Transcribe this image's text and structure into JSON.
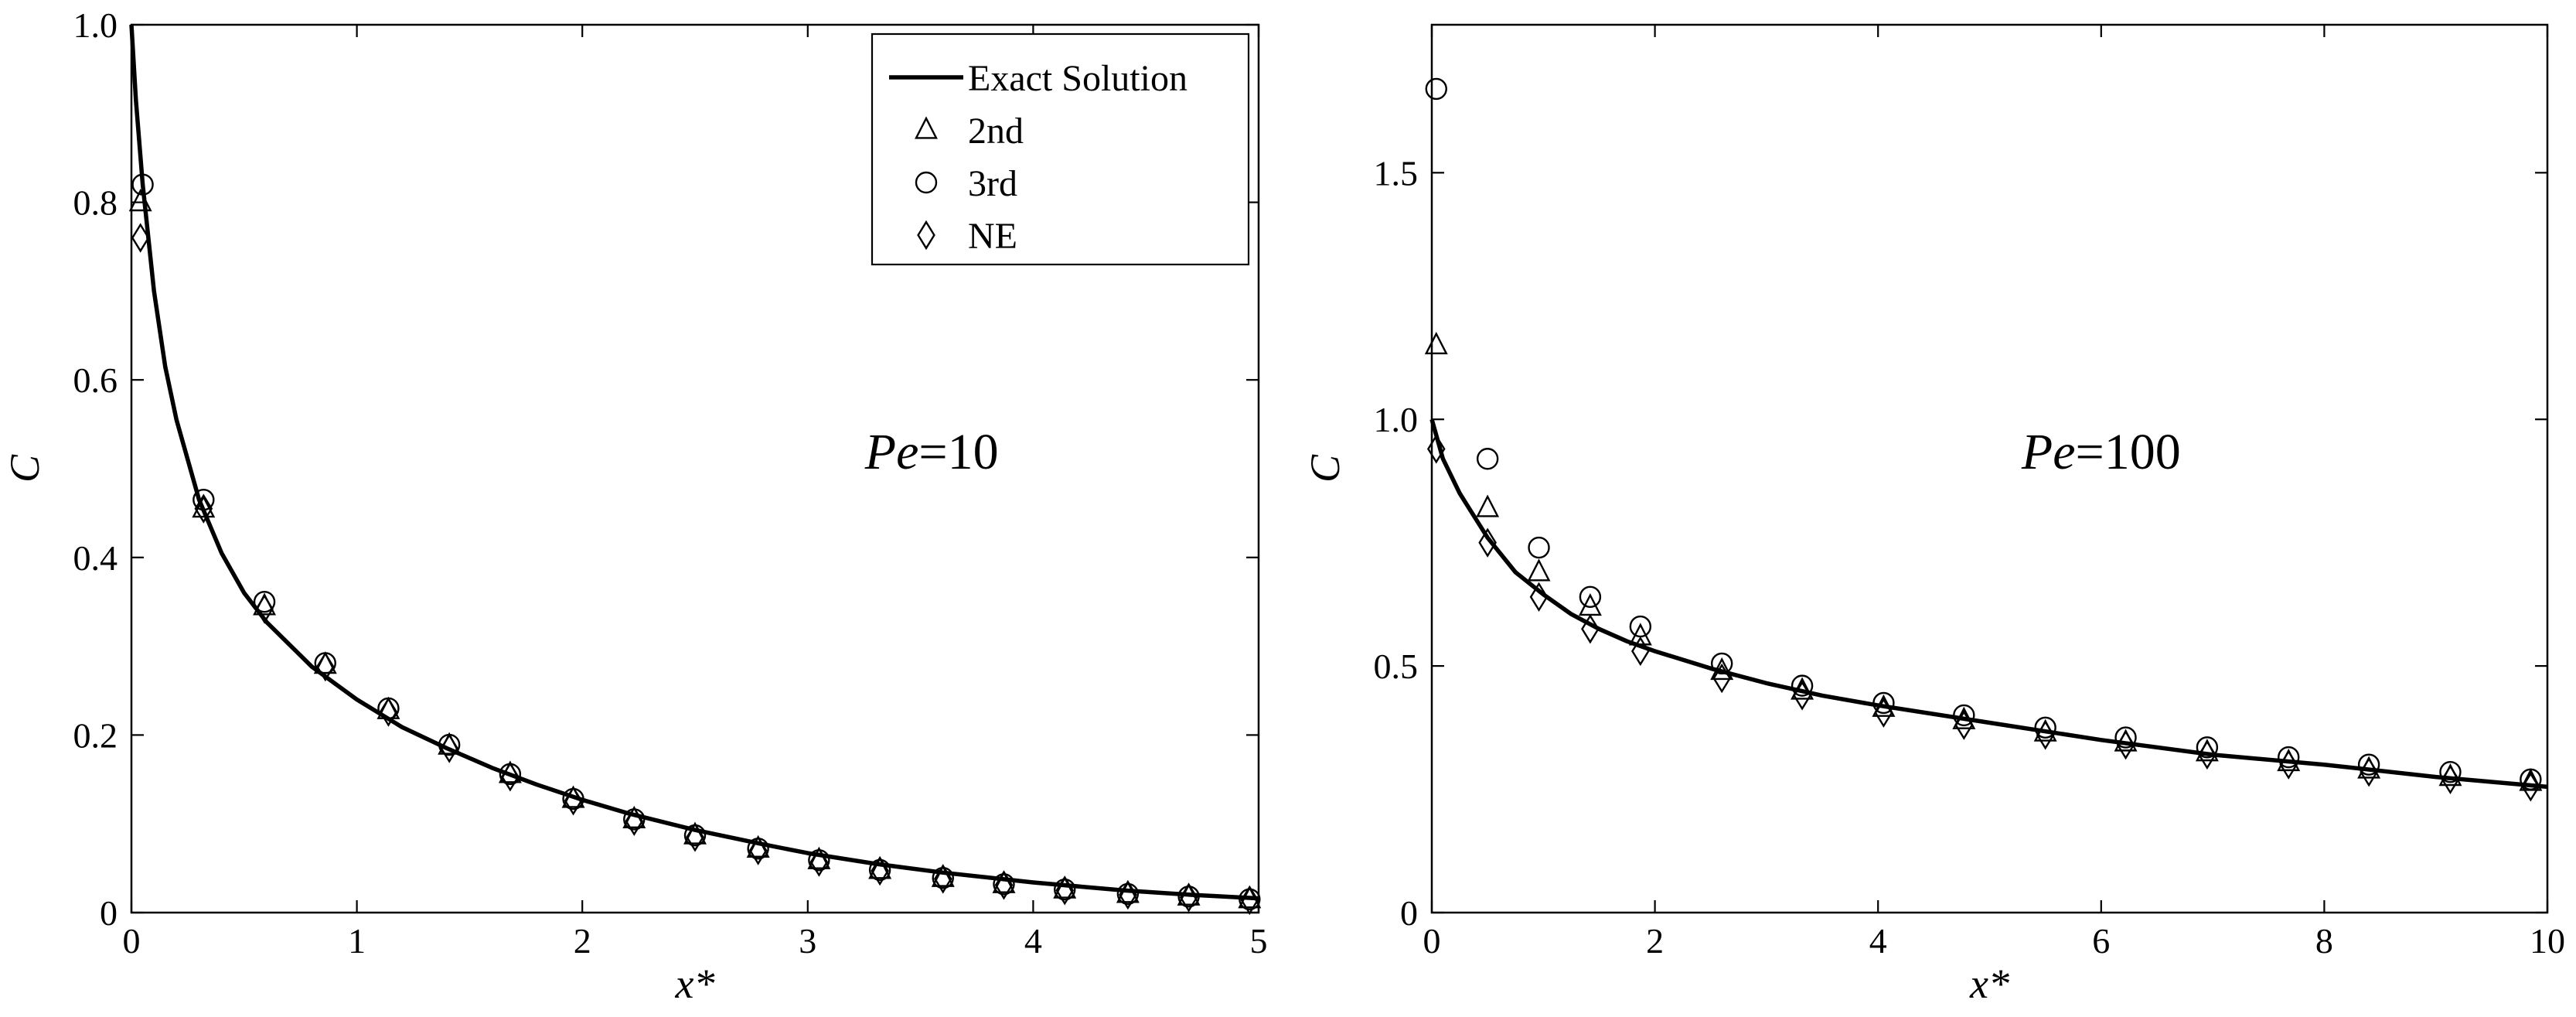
{
  "chart_data": [
    {
      "type": "line",
      "title": "",
      "xlabel": "x*",
      "ylabel": "C",
      "xlim": [
        0,
        5
      ],
      "ylim": [
        0,
        1
      ],
      "xticks": [
        0,
        1,
        2,
        3,
        4,
        5
      ],
      "xtick_labels": [
        "0",
        "1",
        "2",
        "3",
        "4",
        "5"
      ],
      "yticks": [
        0,
        0.2,
        0.4,
        0.6,
        0.8,
        1.0
      ],
      "ytick_labels": [
        "0",
        "0.2",
        "0.4",
        "0.6",
        "0.8",
        "1.0"
      ],
      "annotation": {
        "italic": "Pe",
        "rest": "=10",
        "x": 3.55,
        "y": 0.5
      },
      "grid": false,
      "legend": {
        "location": "top-right",
        "entries": [
          {
            "label": "Exact Solution",
            "marker": "line"
          },
          {
            "label": "2nd",
            "marker": "triangle"
          },
          {
            "label": "3rd",
            "marker": "circle"
          },
          {
            "label": "NE",
            "marker": "diamond"
          }
        ]
      },
      "exact_solution": {
        "name": "Exact Solution",
        "x": [
          0,
          0.02,
          0.05,
          0.1,
          0.15,
          0.2,
          0.3,
          0.4,
          0.5,
          0.6,
          0.8,
          1.0,
          1.2,
          1.4,
          1.6,
          1.8,
          2.0,
          2.2,
          2.5,
          2.8,
          3.0,
          3.3,
          3.6,
          4.0,
          4.4,
          4.7,
          5.0
        ],
        "y": [
          1.0,
          0.915,
          0.82,
          0.7,
          0.615,
          0.555,
          0.465,
          0.405,
          0.36,
          0.327,
          0.277,
          0.24,
          0.209,
          0.185,
          0.163,
          0.144,
          0.127,
          0.112,
          0.093,
          0.077,
          0.067,
          0.055,
          0.045,
          0.034,
          0.025,
          0.02,
          0.016
        ]
      },
      "series": [
        {
          "name": "2nd",
          "marker": "triangle",
          "x": [
            0.04,
            0.32,
            0.59,
            0.86,
            1.14,
            1.41,
            1.68,
            1.96,
            2.23,
            2.5,
            2.78,
            3.05,
            3.32,
            3.6,
            3.87,
            4.14,
            4.42,
            4.69,
            4.96
          ],
          "y": [
            0.8,
            0.455,
            0.345,
            0.279,
            0.228,
            0.188,
            0.156,
            0.128,
            0.105,
            0.087,
            0.072,
            0.059,
            0.048,
            0.039,
            0.032,
            0.026,
            0.021,
            0.018,
            0.015
          ]
        },
        {
          "name": "3rd",
          "marker": "circle",
          "x": [
            0.05,
            0.32,
            0.59,
            0.86,
            1.14,
            1.41,
            1.68,
            1.96,
            2.23,
            2.5,
            2.78,
            3.05,
            3.32,
            3.6,
            3.87,
            4.14,
            4.42,
            4.69,
            4.96
          ],
          "y": [
            0.82,
            0.465,
            0.35,
            0.281,
            0.23,
            0.189,
            0.156,
            0.128,
            0.105,
            0.087,
            0.072,
            0.059,
            0.048,
            0.039,
            0.032,
            0.026,
            0.021,
            0.018,
            0.015
          ]
        },
        {
          "name": "NE",
          "marker": "diamond",
          "x": [
            0.04,
            0.32,
            0.59,
            0.86,
            1.14,
            1.41,
            1.68,
            1.96,
            2.23,
            2.5,
            2.78,
            3.05,
            3.32,
            3.6,
            3.87,
            4.14,
            4.42,
            4.69,
            4.96
          ],
          "y": [
            0.76,
            0.455,
            0.342,
            0.277,
            0.226,
            0.185,
            0.153,
            0.126,
            0.103,
            0.085,
            0.07,
            0.057,
            0.047,
            0.038,
            0.031,
            0.025,
            0.02,
            0.017,
            0.014
          ]
        }
      ]
    },
    {
      "type": "line",
      "title": "",
      "xlabel": "x*",
      "ylabel": "C",
      "xlim": [
        0,
        10
      ],
      "ylim": [
        0,
        1.8
      ],
      "xticks": [
        0,
        2,
        4,
        6,
        8,
        10
      ],
      "xtick_labels": [
        "0",
        "2",
        "4",
        "6",
        "8",
        "10"
      ],
      "yticks": [
        0,
        0.5,
        1.0,
        1.5
      ],
      "ytick_labels": [
        "0",
        "0.5",
        "1.0",
        "1.5"
      ],
      "annotation": {
        "italic": "Pe",
        "rest": "=100",
        "x": 6.0,
        "y": 0.9
      },
      "grid": false,
      "exact_solution": {
        "name": "Exact Solution",
        "x": [
          0,
          0.1,
          0.25,
          0.5,
          0.75,
          1.0,
          1.25,
          1.5,
          1.75,
          2.0,
          2.5,
          3.0,
          3.5,
          4.0,
          5.0,
          6.0,
          7.0,
          8.0,
          9.0,
          10.0
        ],
        "y": [
          1.0,
          0.92,
          0.85,
          0.76,
          0.69,
          0.645,
          0.605,
          0.575,
          0.55,
          0.53,
          0.495,
          0.465,
          0.44,
          0.42,
          0.385,
          0.35,
          0.32,
          0.3,
          0.275,
          0.255
        ]
      },
      "series": [
        {
          "name": "2nd",
          "marker": "triangle",
          "x": [
            0.04,
            0.5,
            0.96,
            1.42,
            1.87,
            2.6,
            3.32,
            4.05,
            4.77,
            5.5,
            6.22,
            6.95,
            7.68,
            8.4,
            9.13,
            9.85
          ],
          "y": [
            1.15,
            0.82,
            0.69,
            0.62,
            0.56,
            0.49,
            0.45,
            0.415,
            0.39,
            0.365,
            0.345,
            0.325,
            0.305,
            0.29,
            0.275,
            0.265
          ]
        },
        {
          "name": "3rd",
          "marker": "circle",
          "x": [
            0.04,
            0.5,
            0.96,
            1.42,
            1.87,
            2.6,
            3.32,
            4.05,
            4.77,
            5.5,
            6.22,
            6.95,
            7.68,
            8.4,
            9.13,
            9.85
          ],
          "y": [
            1.67,
            0.92,
            0.74,
            0.64,
            0.58,
            0.505,
            0.46,
            0.425,
            0.4,
            0.375,
            0.355,
            0.335,
            0.315,
            0.3,
            0.285,
            0.27
          ]
        },
        {
          "name": "NE",
          "marker": "diamond",
          "x": [
            0.04,
            0.5,
            0.96,
            1.42,
            1.87,
            2.6,
            3.32,
            4.05,
            4.77,
            5.5,
            6.22,
            6.95,
            7.68,
            8.4,
            9.13,
            9.85
          ],
          "y": [
            0.94,
            0.75,
            0.64,
            0.575,
            0.53,
            0.475,
            0.44,
            0.405,
            0.38,
            0.36,
            0.34,
            0.32,
            0.3,
            0.285,
            0.27,
            0.255
          ]
        }
      ]
    }
  ]
}
